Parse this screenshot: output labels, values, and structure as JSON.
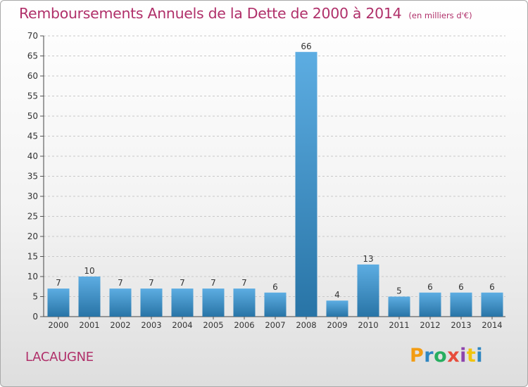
{
  "header": {
    "title": "Remboursements Annuels de la Dette de 2000 à 2014",
    "unit": "(en milliers d'€)"
  },
  "footer": {
    "commune": "LACAUGNE",
    "logo_text": "Proxiti",
    "logo_colors": [
      "#f39c12",
      "#2e86c1",
      "#27ae60",
      "#e74c3c",
      "#8e44ad",
      "#f1c40f",
      "#2e86c1"
    ]
  },
  "colors": {
    "title": "#b0306a",
    "bar_top": "#5dade2",
    "bar_bottom": "#2874a6",
    "grid": "#c8c8c8"
  },
  "chart_data": {
    "type": "bar",
    "title": "Remboursements Annuels de la Dette de 2000 à 2014",
    "subtitle": "(en milliers d'€)",
    "categories": [
      "2000",
      "2001",
      "2002",
      "2003",
      "2004",
      "2005",
      "2006",
      "2007",
      "2008",
      "2009",
      "2010",
      "2011",
      "2012",
      "2013",
      "2014"
    ],
    "values": [
      7,
      10,
      7,
      7,
      7,
      7,
      7,
      6,
      66,
      4,
      13,
      5,
      6,
      6,
      6
    ],
    "ylim": [
      0,
      70
    ],
    "yticks": [
      0,
      5,
      10,
      15,
      20,
      25,
      30,
      35,
      40,
      45,
      50,
      55,
      60,
      65,
      70
    ],
    "xlabel": "",
    "ylabel": "",
    "grid": true,
    "data_labels": true
  }
}
